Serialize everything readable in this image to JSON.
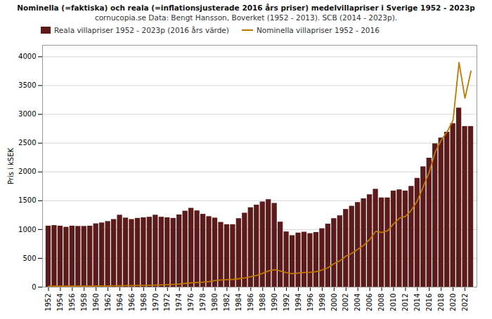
{
  "chart_data": {
    "type": "bar",
    "title": "Nominella (=faktiska) och reala (=inflationsjusterade 2016 års priser) medelvillapriser i Sverige 1952 - 2023p",
    "subtitle": "cornucopia.se Data: Bengt Hansson, Boverket (1952 - 2013). SCB (2014 - 2023p).",
    "ylabel": "Pris i kSEK",
    "x": [
      1952,
      1953,
      1954,
      1955,
      1956,
      1957,
      1958,
      1959,
      1960,
      1961,
      1962,
      1963,
      1964,
      1965,
      1966,
      1967,
      1968,
      1969,
      1970,
      1971,
      1972,
      1973,
      1974,
      1975,
      1976,
      1977,
      1978,
      1979,
      1980,
      1981,
      1982,
      1983,
      1984,
      1985,
      1986,
      1987,
      1988,
      1989,
      1990,
      1991,
      1992,
      1993,
      1994,
      1995,
      1996,
      1997,
      1998,
      1999,
      2000,
      2001,
      2002,
      2003,
      2004,
      2005,
      2006,
      2007,
      2008,
      2009,
      2010,
      2011,
      2012,
      2013,
      2014,
      2015,
      2016,
      2017,
      2018,
      2019,
      2020,
      2021,
      2022,
      2023
    ],
    "series": [
      {
        "name": "Reala villapriser 1952 - 2023p (2016 års värde)",
        "type": "bar",
        "color": "#5C1A1A",
        "values": [
          1060,
          1070,
          1060,
          1040,
          1060,
          1055,
          1055,
          1060,
          1100,
          1115,
          1140,
          1175,
          1250,
          1200,
          1175,
          1195,
          1205,
          1215,
          1250,
          1215,
          1205,
          1195,
          1255,
          1320,
          1370,
          1325,
          1265,
          1225,
          1200,
          1125,
          1085,
          1085,
          1190,
          1285,
          1380,
          1425,
          1480,
          1520,
          1455,
          1130,
          960,
          895,
          940,
          955,
          930,
          950,
          1015,
          1095,
          1190,
          1240,
          1350,
          1405,
          1470,
          1535,
          1605,
          1700,
          1550,
          1550,
          1670,
          1690,
          1670,
          1750,
          1890,
          2090,
          2240,
          2490,
          2590,
          2690,
          2840,
          3110,
          2790,
          2790
        ]
      },
      {
        "name": "Nominella villapriser 1952 - 2016",
        "type": "line",
        "color": "#C07800",
        "values": [
          14,
          15,
          15,
          15,
          16,
          16,
          17,
          17,
          19,
          20,
          21,
          22,
          24,
          26,
          27,
          29,
          30,
          32,
          35,
          38,
          42,
          47,
          54,
          64,
          74,
          81,
          87,
          97,
          113,
          124,
          129,
          134,
          146,
          160,
          180,
          203,
          238,
          282,
          302,
          278,
          252,
          232,
          245,
          255,
          258,
          270,
          298,
          338,
          408,
          458,
          538,
          588,
          658,
          728,
          828,
          968,
          948,
          978,
          1098,
          1198,
          1228,
          1338,
          1498,
          1748,
          1998,
          2348,
          2548,
          2698,
          2898,
          3900,
          3280,
          3750
        ]
      }
    ],
    "xlim": [
      1951,
      2024
    ],
    "xticks": [
      1952,
      1954,
      1956,
      1958,
      1960,
      1962,
      1964,
      1966,
      1968,
      1970,
      1972,
      1974,
      1976,
      1978,
      1980,
      1982,
      1984,
      1986,
      1988,
      1990,
      1992,
      1994,
      1996,
      1998,
      2000,
      2002,
      2004,
      2006,
      2008,
      2010,
      2012,
      2014,
      2016,
      2018,
      2020,
      2022
    ],
    "ylim": [
      0,
      4200
    ],
    "yticks": [
      0,
      500,
      1000,
      1500,
      2000,
      2500,
      3000,
      3500,
      4000
    ],
    "grid": "y",
    "legend": "upper left"
  }
}
